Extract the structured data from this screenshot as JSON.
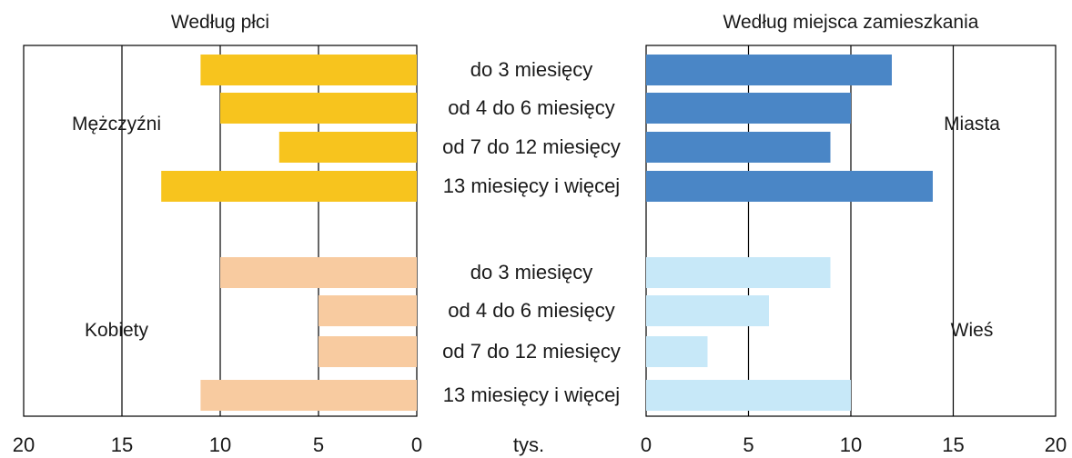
{
  "colors": {
    "men": "#F7C41E",
    "women": "#F8CBA0",
    "cities": "#4A86C6",
    "villages": "#C7E8F8",
    "grid": "#000000",
    "text": "#1a1a1a"
  },
  "chart_data": [
    {
      "type": "bar",
      "orientation": "horizontal",
      "direction": "right-to-left",
      "title": "Według płci",
      "unit": "tys.",
      "xlim": [
        0,
        20
      ],
      "ticks": [
        "20",
        "15",
        "10",
        "5",
        "0"
      ],
      "tick_values": [
        20,
        15,
        10,
        5,
        0
      ],
      "categories": [
        "do 3 miesięcy",
        "od 4 do 6 miesięcy",
        "od 7 do 12 miesięcy",
        "13 miesięcy i więcej"
      ],
      "series": [
        {
          "name": "Mężczyźni",
          "color": "#F7C41E",
          "values": [
            11,
            10,
            7,
            13
          ]
        },
        {
          "name": "Kobiety",
          "color": "#F8CBA0",
          "values": [
            10,
            5,
            5,
            11
          ]
        }
      ]
    },
    {
      "type": "bar",
      "orientation": "horizontal",
      "direction": "left-to-right",
      "title": "Według miejsca zamieszkania",
      "unit": "tys.",
      "xlim": [
        0,
        20
      ],
      "ticks": [
        "0",
        "5",
        "10",
        "15",
        "20"
      ],
      "tick_values": [
        0,
        5,
        10,
        15,
        20
      ],
      "categories": [
        "do 3 miesięcy",
        "od 4 do 6 miesięcy",
        "od 7 do 12 miesięcy",
        "13 miesięcy i więcej"
      ],
      "series": [
        {
          "name": "Miasta",
          "color": "#4A86C6",
          "values": [
            12,
            10,
            9,
            14
          ]
        },
        {
          "name": "Wieś",
          "color": "#C7E8F8",
          "values": [
            9,
            6,
            3,
            10
          ]
        }
      ]
    }
  ]
}
